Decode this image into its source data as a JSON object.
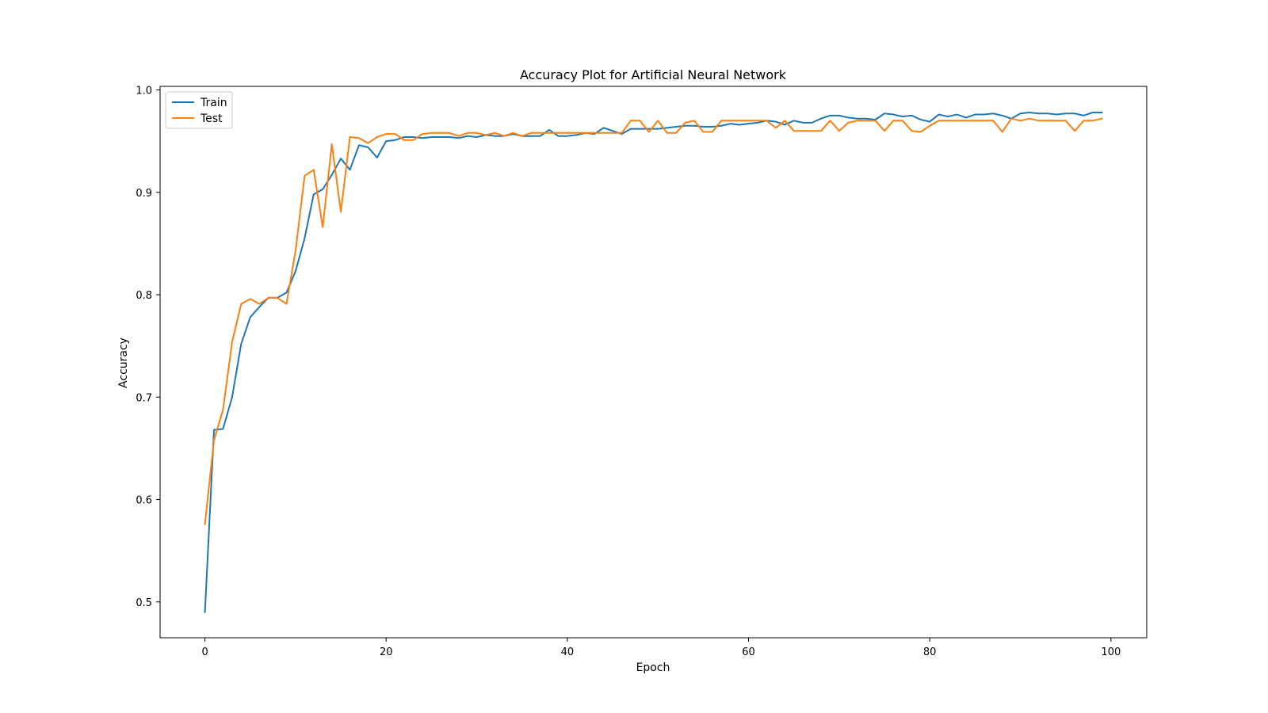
{
  "chart_data": {
    "type": "line",
    "title": "Accuracy Plot for Artificial Neural Network",
    "xlabel": "Epoch",
    "ylabel": "Accuracy",
    "xlim": [
      -4.95,
      103.95
    ],
    "ylim": [
      0.465,
      1.0035
    ],
    "xticks": [
      0,
      20,
      40,
      60,
      80,
      100
    ],
    "xtick_labels": [
      "0",
      "20",
      "40",
      "60",
      "80",
      "100"
    ],
    "yticks": [
      0.5,
      0.6,
      0.7,
      0.8,
      0.9,
      1.0
    ],
    "ytick_labels": [
      "0.5",
      "0.6",
      "0.7",
      "0.8",
      "0.9",
      "1.0"
    ],
    "grid": false,
    "legend_position": "upper-left",
    "x": [
      0,
      1,
      2,
      3,
      4,
      5,
      6,
      7,
      8,
      9,
      10,
      11,
      12,
      13,
      14,
      15,
      16,
      17,
      18,
      19,
      20,
      21,
      22,
      23,
      24,
      25,
      26,
      27,
      28,
      29,
      30,
      31,
      32,
      33,
      34,
      35,
      36,
      37,
      38,
      39,
      40,
      41,
      42,
      43,
      44,
      45,
      46,
      47,
      48,
      49,
      50,
      51,
      52,
      53,
      54,
      55,
      56,
      57,
      58,
      59,
      60,
      61,
      62,
      63,
      64,
      65,
      66,
      67,
      68,
      69,
      70,
      71,
      72,
      73,
      74,
      75,
      76,
      77,
      78,
      79,
      80,
      81,
      82,
      83,
      84,
      85,
      86,
      87,
      88,
      89,
      90,
      91,
      92,
      93,
      94,
      95,
      96,
      97,
      98,
      99
    ],
    "series": [
      {
        "name": "Train",
        "color": "#1f77b4",
        "values": [
          0.49,
          0.668,
          0.669,
          0.7,
          0.752,
          0.778,
          0.788,
          0.797,
          0.797,
          0.802,
          0.823,
          0.855,
          0.898,
          0.903,
          0.917,
          0.933,
          0.922,
          0.946,
          0.944,
          0.934,
          0.95,
          0.951,
          0.954,
          0.954,
          0.953,
          0.954,
          0.954,
          0.954,
          0.953,
          0.955,
          0.954,
          0.956,
          0.955,
          0.955,
          0.957,
          0.955,
          0.955,
          0.955,
          0.961,
          0.955,
          0.955,
          0.956,
          0.958,
          0.957,
          0.963,
          0.96,
          0.957,
          0.962,
          0.962,
          0.962,
          0.962,
          0.963,
          0.964,
          0.965,
          0.965,
          0.964,
          0.964,
          0.965,
          0.967,
          0.966,
          0.967,
          0.968,
          0.97,
          0.969,
          0.966,
          0.97,
          0.968,
          0.968,
          0.972,
          0.975,
          0.975,
          0.973,
          0.972,
          0.972,
          0.971,
          0.977,
          0.976,
          0.974,
          0.975,
          0.971,
          0.969,
          0.976,
          0.974,
          0.976,
          0.973,
          0.976,
          0.976,
          0.977,
          0.975,
          0.972,
          0.977,
          0.978,
          0.977,
          0.977,
          0.976,
          0.977,
          0.977,
          0.975,
          0.978,
          0.978
        ]
      },
      {
        "name": "Test",
        "color": "#ff7f0e",
        "values": [
          0.576,
          0.658,
          0.688,
          0.754,
          0.791,
          0.796,
          0.791,
          0.797,
          0.797,
          0.791,
          0.843,
          0.916,
          0.922,
          0.866,
          0.947,
          0.881,
          0.954,
          0.953,
          0.948,
          0.954,
          0.957,
          0.957,
          0.951,
          0.951,
          0.957,
          0.958,
          0.958,
          0.958,
          0.955,
          0.958,
          0.958,
          0.956,
          0.958,
          0.955,
          0.958,
          0.955,
          0.958,
          0.958,
          0.958,
          0.958,
          0.958,
          0.958,
          0.958,
          0.958,
          0.958,
          0.958,
          0.958,
          0.97,
          0.97,
          0.959,
          0.97,
          0.958,
          0.958,
          0.968,
          0.97,
          0.959,
          0.959,
          0.97,
          0.97,
          0.97,
          0.97,
          0.97,
          0.97,
          0.963,
          0.97,
          0.96,
          0.96,
          0.96,
          0.96,
          0.97,
          0.96,
          0.968,
          0.97,
          0.97,
          0.97,
          0.96,
          0.97,
          0.97,
          0.96,
          0.959,
          0.965,
          0.97,
          0.97,
          0.97,
          0.97,
          0.97,
          0.97,
          0.97,
          0.959,
          0.972,
          0.97,
          0.972,
          0.97,
          0.97,
          0.97,
          0.97,
          0.96,
          0.97,
          0.97,
          0.972
        ]
      }
    ]
  }
}
